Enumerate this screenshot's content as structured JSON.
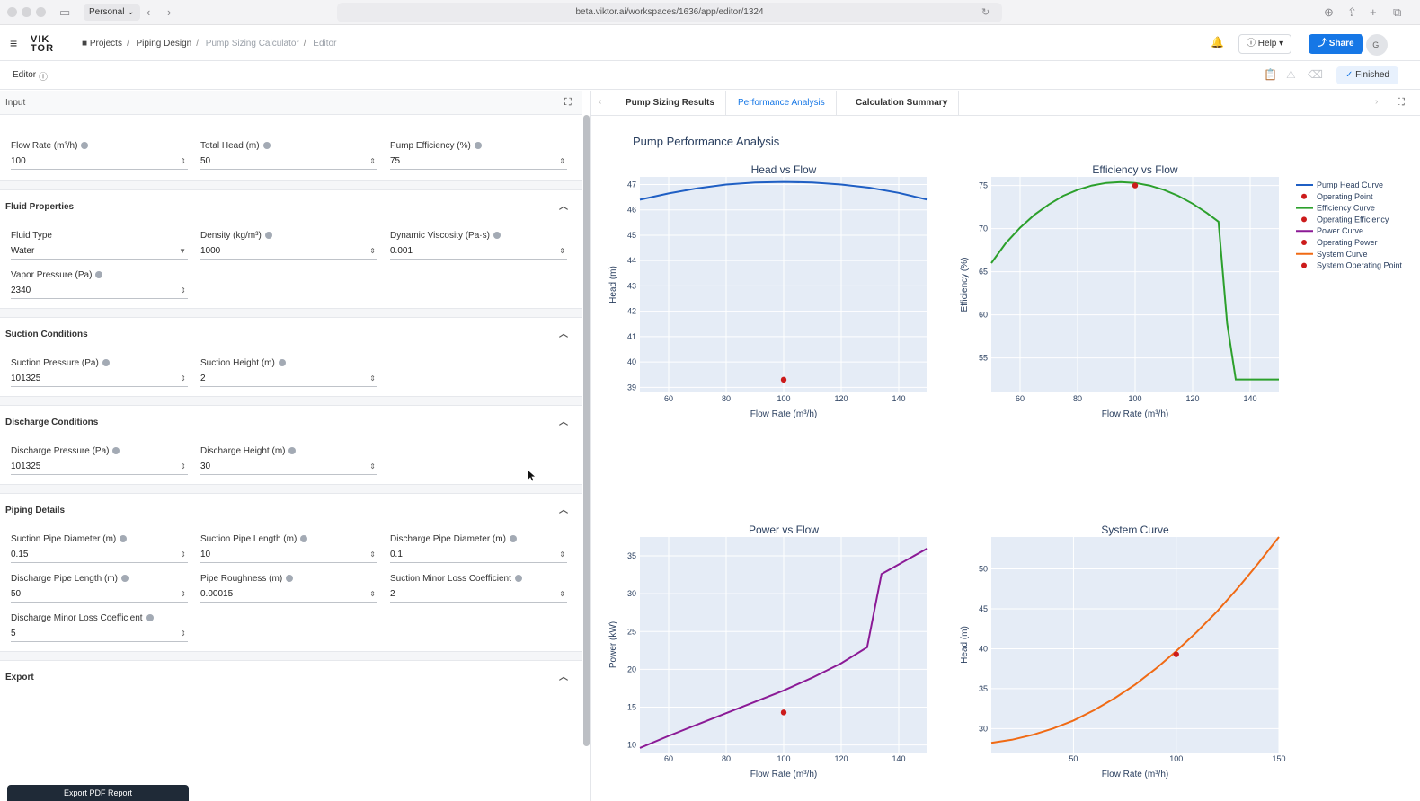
{
  "browser": {
    "profile": "Personal",
    "url": "beta.viktor.ai/workspaces/1636/app/editor/1324"
  },
  "app": {
    "logo_top": "VIK",
    "logo_bottom": "TOR",
    "breadcrumbs": [
      "Projects",
      "Piping Design",
      "Pump Sizing Calculator",
      "Editor"
    ],
    "help_label": "Help",
    "share_label": "Share",
    "avatar_initials": "GI"
  },
  "editor": {
    "label": "Editor",
    "status_label": "Finished"
  },
  "input_panel": {
    "header": "Input",
    "top_fields": [
      {
        "label": "Flow Rate (m³/h)",
        "value": "100"
      },
      {
        "label": "Total Head (m)",
        "value": "50"
      },
      {
        "label": "Pump Efficiency (%)",
        "value": "75"
      }
    ],
    "sections": {
      "fluid": {
        "title": "Fluid Properties",
        "fields": [
          {
            "label": "Fluid Type",
            "value": "Water"
          },
          {
            "label": "Density (kg/m³)",
            "value": "1000"
          },
          {
            "label": "Dynamic Viscosity (Pa·s)",
            "value": "0.001"
          },
          {
            "label": "Vapor Pressure (Pa)",
            "value": "2340"
          }
        ]
      },
      "suction": {
        "title": "Suction Conditions",
        "fields": [
          {
            "label": "Suction Pressure (Pa)",
            "value": "101325"
          },
          {
            "label": "Suction Height (m)",
            "value": "2"
          }
        ]
      },
      "discharge": {
        "title": "Discharge Conditions",
        "fields": [
          {
            "label": "Discharge Pressure (Pa)",
            "value": "101325"
          },
          {
            "label": "Discharge Height (m)",
            "value": "30"
          }
        ]
      },
      "piping": {
        "title": "Piping Details",
        "fields": [
          {
            "label": "Suction Pipe Diameter (m)",
            "value": "0.15"
          },
          {
            "label": "Suction Pipe Length (m)",
            "value": "10"
          },
          {
            "label": "Discharge Pipe Diameter (m)",
            "value": "0.1"
          },
          {
            "label": "Discharge Pipe Length (m)",
            "value": "50"
          },
          {
            "label": "Pipe Roughness (m)",
            "value": "0.00015"
          },
          {
            "label": "Suction Minor Loss Coefficient",
            "value": "2"
          },
          {
            "label": "Discharge Minor Loss Coefficient",
            "value": "5"
          }
        ]
      },
      "export": {
        "title": "Export",
        "button_label": "Export PDF Report"
      }
    }
  },
  "results_panel": {
    "tabs": [
      "Pump Sizing Results",
      "Performance Analysis",
      "Calculation Summary"
    ],
    "active_tab": 1,
    "title": "Pump Performance Analysis"
  },
  "chart_data": [
    {
      "type": "line",
      "title": "Head vs Flow",
      "xlabel": "Flow Rate (m³/h)",
      "ylabel": "Head (m)",
      "xlim": [
        50,
        150
      ],
      "ylim": [
        38.8,
        47.3
      ],
      "xticks": [
        60,
        80,
        100,
        120,
        140
      ],
      "yticks": [
        39,
        40,
        41,
        42,
        43,
        44,
        45,
        46,
        47
      ],
      "series": [
        {
          "name": "Pump Head Curve",
          "color": "#1f5fc4",
          "mode": "line",
          "x": [
            50,
            60,
            70,
            80,
            90,
            100,
            110,
            120,
            130,
            140,
            150
          ],
          "y": [
            46.4,
            46.65,
            46.85,
            47.0,
            47.08,
            47.1,
            47.08,
            47.0,
            46.87,
            46.67,
            46.4
          ]
        },
        {
          "name": "Operating Point",
          "color": "#cc1b1b",
          "mode": "marker",
          "x": [
            100
          ],
          "y": [
            39.3
          ]
        }
      ]
    },
    {
      "type": "line",
      "title": "Efficiency vs Flow",
      "xlabel": "Flow Rate (m³/h)",
      "ylabel": "Efficiency (%)",
      "xlim": [
        50,
        150
      ],
      "ylim": [
        51,
        76
      ],
      "xticks": [
        60,
        80,
        100,
        120,
        140
      ],
      "yticks": [
        55,
        60,
        65,
        70,
        75
      ],
      "series": [
        {
          "name": "Efficiency Curve",
          "color": "#2ca02c",
          "mode": "line",
          "x": [
            50,
            55,
            60,
            65,
            70,
            75,
            80,
            85,
            90,
            95,
            100,
            105,
            110,
            115,
            120,
            125,
            129,
            132,
            135,
            150
          ],
          "y": [
            66,
            68.3,
            70.1,
            71.6,
            72.8,
            73.8,
            74.5,
            75.0,
            75.3,
            75.4,
            75.3,
            75.0,
            74.5,
            73.8,
            72.9,
            71.8,
            70.8,
            59,
            52.5,
            52.5
          ]
        },
        {
          "name": "Operating Efficiency",
          "color": "#cc1b1b",
          "mode": "marker",
          "x": [
            100
          ],
          "y": [
            75
          ]
        }
      ]
    },
    {
      "type": "line",
      "title": "Power vs Flow",
      "xlabel": "Flow Rate (m³/h)",
      "ylabel": "Power (kW)",
      "xlim": [
        50,
        150
      ],
      "ylim": [
        9,
        37.5
      ],
      "xticks": [
        60,
        80,
        100,
        120,
        140
      ],
      "yticks": [
        10,
        15,
        20,
        25,
        30,
        35
      ],
      "series": [
        {
          "name": "Power Curve",
          "color": "#8b1a96",
          "mode": "line",
          "x": [
            50,
            60,
            70,
            80,
            90,
            100,
            110,
            120,
            129,
            134,
            150
          ],
          "y": [
            9.6,
            11.2,
            12.7,
            14.2,
            15.7,
            17.2,
            18.9,
            20.8,
            22.9,
            32.6,
            36.0
          ]
        },
        {
          "name": "Operating Power",
          "color": "#cc1b1b",
          "mode": "marker",
          "x": [
            100
          ],
          "y": [
            14.3
          ]
        }
      ]
    },
    {
      "type": "line",
      "title": "System Curve",
      "xlabel": "Flow Rate (m³/h)",
      "ylabel": "Head (m)",
      "xlim": [
        10,
        150
      ],
      "ylim": [
        27,
        54
      ],
      "xticks": [
        50,
        100,
        150
      ],
      "yticks": [
        30,
        35,
        40,
        45,
        50
      ],
      "series": [
        {
          "name": "System Curve",
          "color": "#f06a14",
          "mode": "line",
          "x": [
            10,
            20,
            30,
            40,
            50,
            60,
            70,
            80,
            90,
            100,
            110,
            120,
            130,
            140,
            150
          ],
          "y": [
            28.2,
            28.6,
            29.2,
            30.0,
            31.0,
            32.3,
            33.8,
            35.5,
            37.5,
            39.7,
            42.1,
            44.7,
            47.6,
            50.7,
            54.0
          ]
        },
        {
          "name": "System Operating Point",
          "color": "#cc1b1b",
          "mode": "marker",
          "x": [
            100
          ],
          "y": [
            39.3
          ]
        }
      ]
    }
  ],
  "legend": [
    {
      "name": "Pump Head Curve",
      "color": "#1f5fc4",
      "mode": "line"
    },
    {
      "name": "Operating Point",
      "color": "#cc1b1b",
      "mode": "marker"
    },
    {
      "name": "Efficiency Curve",
      "color": "#2ca02c",
      "mode": "line"
    },
    {
      "name": "Operating Efficiency",
      "color": "#cc1b1b",
      "mode": "marker"
    },
    {
      "name": "Power Curve",
      "color": "#8b1a96",
      "mode": "line"
    },
    {
      "name": "Operating Power",
      "color": "#cc1b1b",
      "mode": "marker"
    },
    {
      "name": "System Curve",
      "color": "#f06a14",
      "mode": "line"
    },
    {
      "name": "System Operating Point",
      "color": "#cc1b1b",
      "mode": "marker"
    }
  ]
}
